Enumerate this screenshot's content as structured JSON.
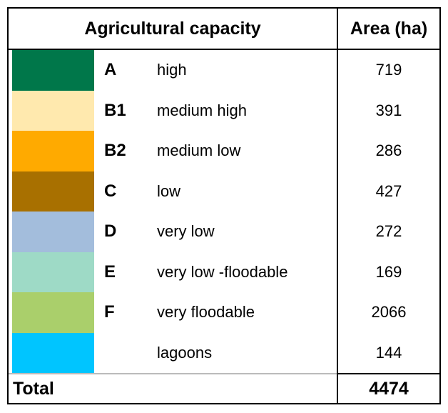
{
  "header": {
    "title": "Agricultural capacity",
    "area": "Area (ha)"
  },
  "rows": [
    {
      "code": "A",
      "label": "high",
      "area": 719,
      "color": "#00774a"
    },
    {
      "code": "B1",
      "label": "medium high",
      "area": 391,
      "color": "#ffe9ae"
    },
    {
      "code": "B2",
      "label": "medium low",
      "area": 286,
      "color": "#ffaa00"
    },
    {
      "code": "C",
      "label": "low",
      "area": 427,
      "color": "#a87000"
    },
    {
      "code": "D",
      "label": "very low",
      "area": 272,
      "color": "#a3bddc"
    },
    {
      "code": "E",
      "label": "very low -floodable",
      "area": 169,
      "color": "#9edac6"
    },
    {
      "code": "F",
      "label": "very floodable",
      "area": 2066,
      "color": "#aacf6b"
    },
    {
      "label": "lagoons",
      "area": 144,
      "color": "#00c5ff"
    }
  ],
  "total": {
    "label": "Total",
    "area": 4474
  }
}
